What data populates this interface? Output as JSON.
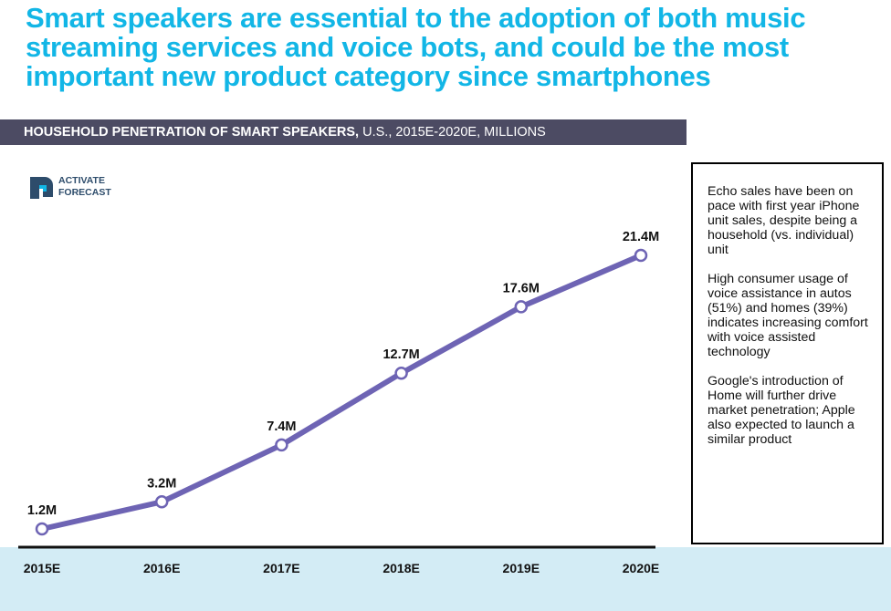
{
  "headline": "Smart speakers are essential to the adoption of both music streaming services and voice bots, and could be the most important new product category since smartphones",
  "banner": {
    "bold": "HOUSEHOLD PENETRATION OF SMART SPEAKERS,",
    "rest": " U.S., 2015E-2020E, MILLIONS"
  },
  "logo": {
    "line1": "ACTIVATE",
    "line2": "FORECAST",
    "icon": "activate-logo-icon",
    "color": "#2d4c6b"
  },
  "notes": [
    "Echo sales have been on pace with first year iPhone unit sales, despite being a household (vs. individual) unit",
    "High consumer usage of voice assistance in autos (51%) and homes (39%) indicates increasing comfort with voice assisted technology",
    "Google's introduction of Home will further drive market penetration; Apple also expected to launch a similar product"
  ],
  "colors": {
    "headline": "#12b6e6",
    "banner_bg": "#4c4b63",
    "line": "#6e64b4",
    "axis_band": "#d3ecf5"
  },
  "chart_data": {
    "type": "line",
    "title": "HOUSEHOLD PENETRATION OF SMART SPEAKERS, U.S., 2015E-2020E, MILLIONS",
    "categories": [
      "2015E",
      "2016E",
      "2017E",
      "2018E",
      "2019E",
      "2020E"
    ],
    "values": [
      1.2,
      3.2,
      7.4,
      12.7,
      17.6,
      21.4
    ],
    "data_labels": [
      "1.2M",
      "3.2M",
      "7.4M",
      "12.7M",
      "17.6M",
      "21.4M"
    ],
    "ylim": [
      0,
      21.4
    ],
    "grid": false,
    "legend": "none",
    "y_axis_shown": false
  }
}
